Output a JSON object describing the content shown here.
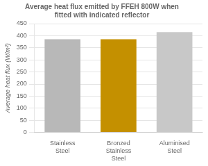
{
  "chart_data": {
    "type": "bar",
    "title": "Average heat flux emitted by FFEH 800W when fitted with indicated reflector",
    "categories": [
      "Stainless Steel",
      "Bronzed Stainless Steel",
      "Aluminised Steel"
    ],
    "values": [
      385,
      385,
      415
    ],
    "colors": [
      "#b8b8b8",
      "#c49000",
      "#c8c8c8"
    ],
    "ylabel": "Average heat flux (W/m²)",
    "ylim": [
      0,
      450
    ],
    "yticks": [
      0,
      50,
      100,
      150,
      200,
      250,
      300,
      350,
      400,
      450
    ],
    "grid": true
  }
}
